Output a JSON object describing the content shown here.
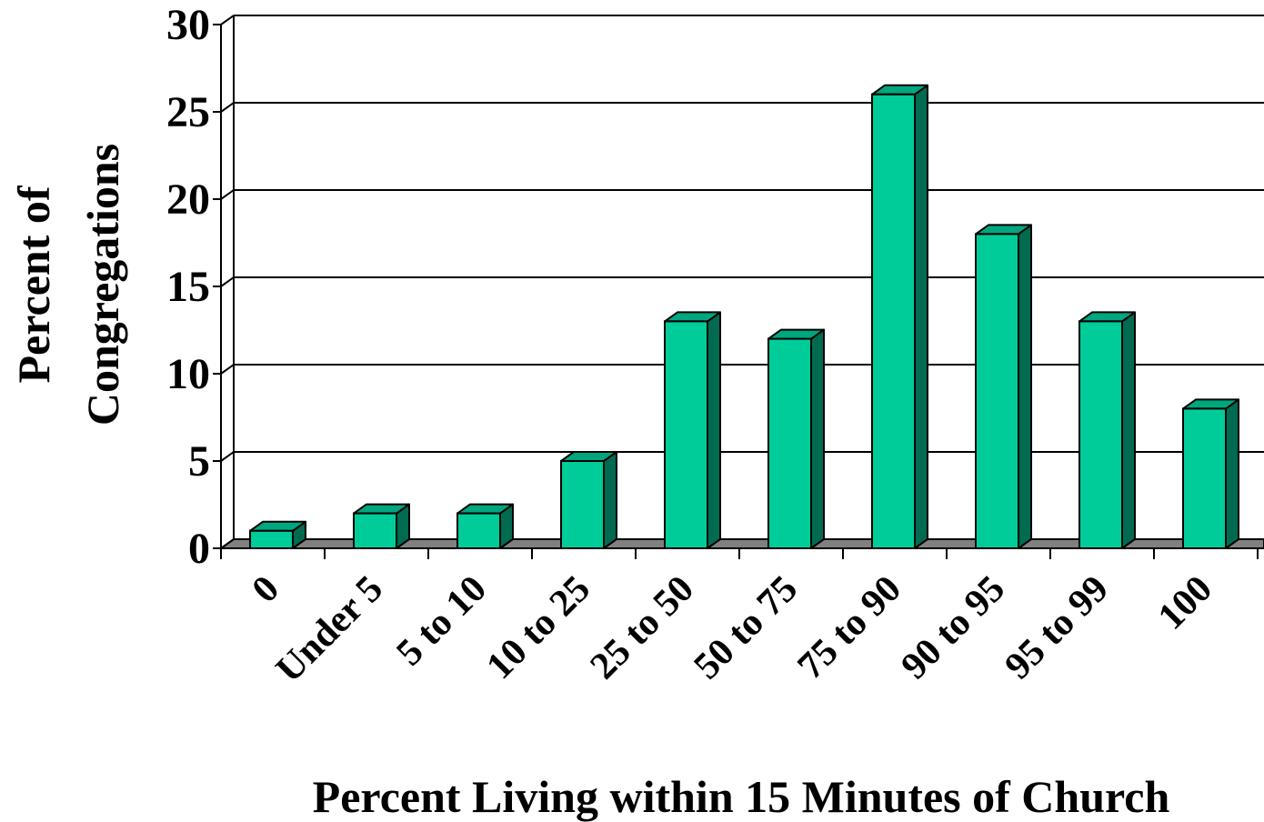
{
  "chart_data": {
    "type": "bar",
    "style": "3d-column",
    "categories": [
      "0",
      "Under 5",
      "5 to 10",
      "10 to 25",
      "25 to 50",
      "50 to 75",
      "75 to 90",
      "90 to 95",
      "95 to 99",
      "100"
    ],
    "values": [
      1,
      2,
      2,
      5,
      13,
      12,
      26,
      18,
      13,
      8
    ],
    "title": "",
    "xlabel": "Percent Living within 15 Minutes of Church",
    "ylabel_lines": [
      "Percent of",
      "Congregations"
    ],
    "ylim": [
      0,
      30
    ],
    "yticks": [
      0,
      5,
      10,
      15,
      20,
      25,
      30
    ],
    "grid": true,
    "legend": "none",
    "colors": {
      "bar_front": "#00CC99",
      "bar_side": "#006B50",
      "bar_top": "#00A77E",
      "floor": "#808080",
      "grid": "#000000"
    }
  }
}
